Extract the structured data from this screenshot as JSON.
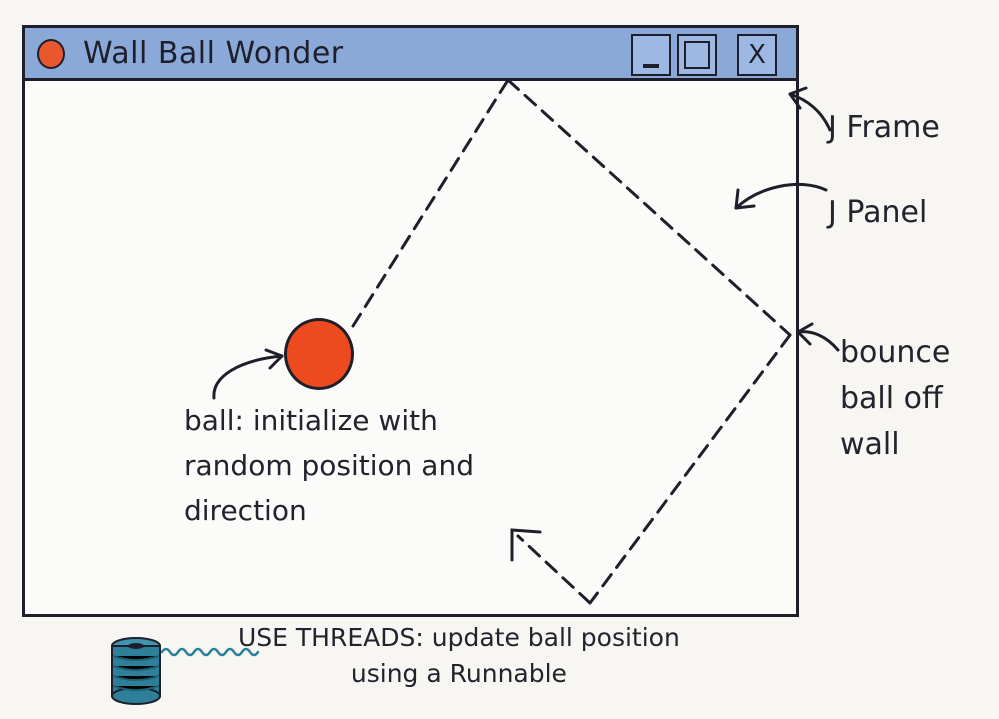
{
  "window": {
    "title": "Wall Ball Wonder",
    "minimize_label": "_",
    "maximize_label": "",
    "close_label": "X"
  },
  "annotations": {
    "jframe": "J Frame",
    "jpanel": "J Panel",
    "bounce": "bounce\nball off\nwall",
    "ball": "ball: initialize with\nrandom position and\ndirection",
    "threads": "USE THREADS: update ball position\nusing a Runnable"
  },
  "colors": {
    "titlebar": "#8aa9d9",
    "ball": "#ed4a1f",
    "ink": "#1f1f2b",
    "spool": "#2e7f99"
  },
  "icons": [
    "ball-icon",
    "minimize-icon",
    "maximize-icon",
    "close-icon",
    "thread-spool-icon"
  ]
}
